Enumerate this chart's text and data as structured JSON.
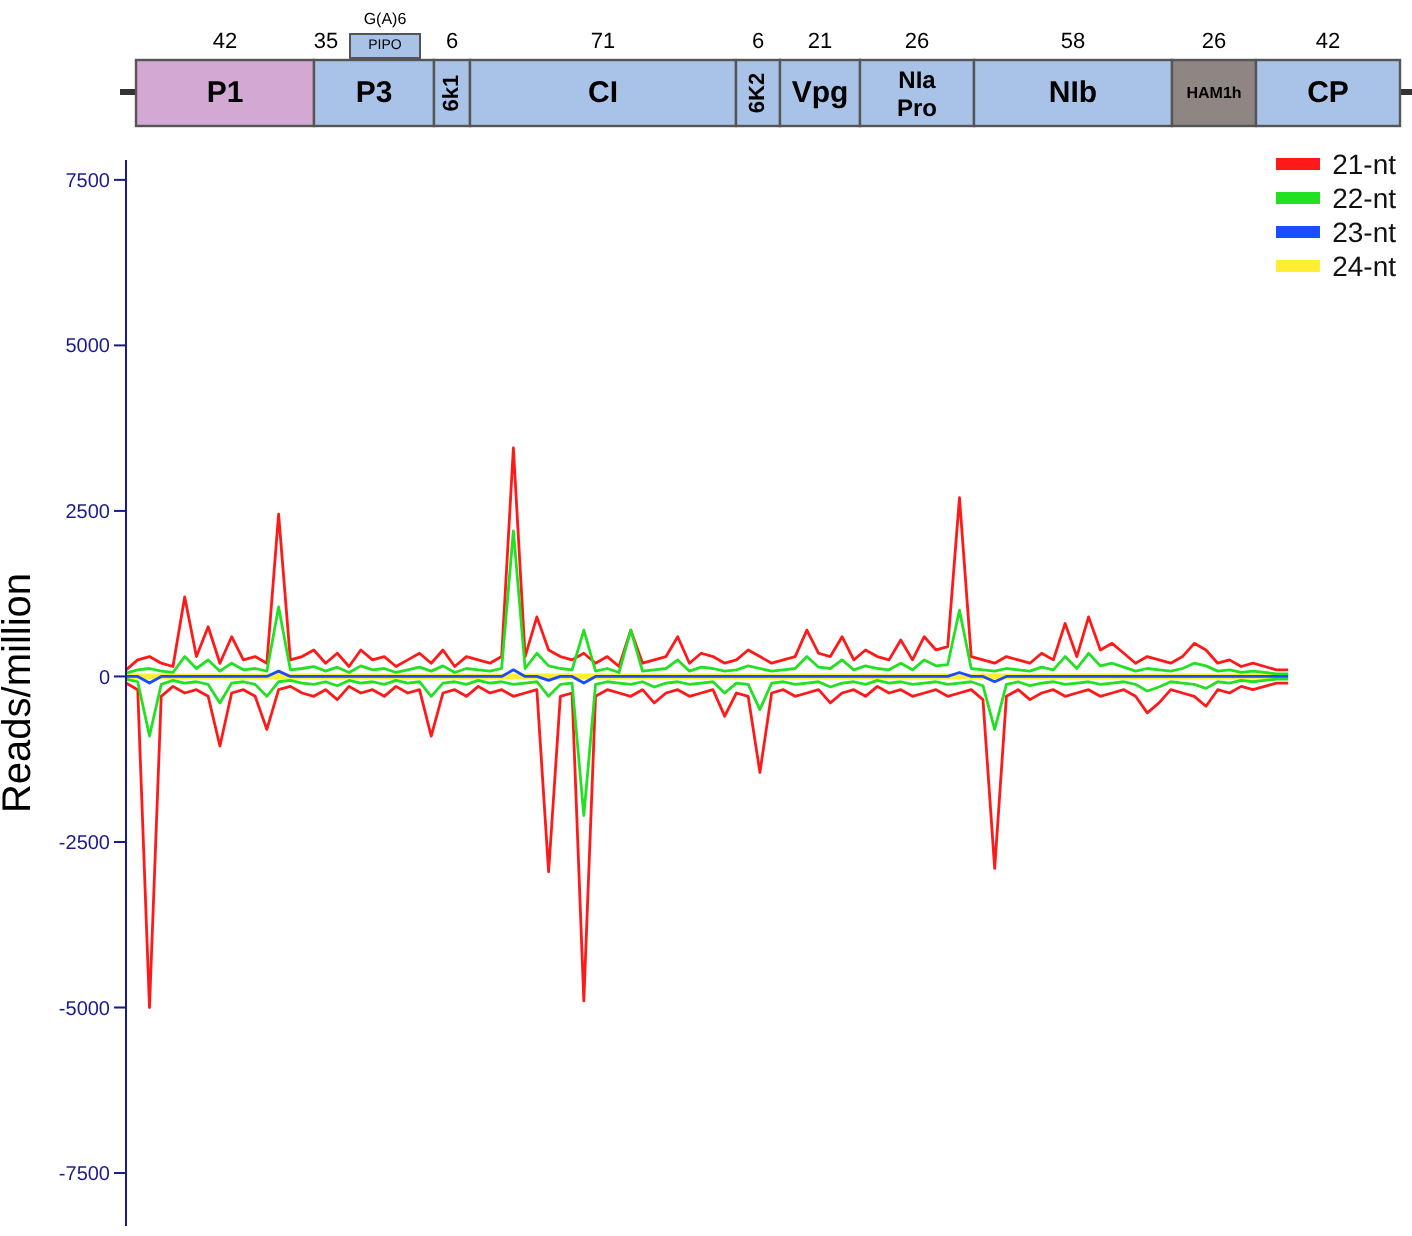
{
  "chart_data": {
    "type": "line",
    "ylabel": "Reads/million",
    "ylim": [
      -8300,
      7800
    ],
    "yticks": [
      -7500,
      -5000,
      -2500,
      0,
      2500,
      5000,
      7500
    ],
    "tick_labels": "y",
    "legend": "top right",
    "marker": "none",
    "categories": [
      null,
      null,
      null,
      null,
      null,
      null,
      null,
      null,
      null,
      null,
      null,
      null,
      null,
      null,
      null,
      null,
      null,
      null,
      null,
      null,
      null,
      null,
      null,
      null,
      null,
      null,
      null,
      null,
      null,
      null,
      null,
      null,
      null,
      null,
      null,
      null,
      null,
      null,
      null,
      null,
      null,
      null,
      null,
      null,
      null,
      null,
      null,
      null,
      null,
      null,
      null,
      null,
      null,
      null,
      null,
      null,
      null,
      null,
      null,
      null,
      null,
      null,
      null,
      null,
      null,
      null,
      null,
      null,
      null,
      null,
      null,
      null,
      null,
      null,
      null,
      null,
      null,
      null,
      null,
      null,
      null,
      null,
      null,
      null,
      null,
      null,
      null,
      null,
      null,
      null,
      null,
      null,
      null,
      null,
      null,
      null,
      null,
      null,
      null,
      null
    ],
    "annotations": [
      "42",
      "P1",
      "35",
      "P3",
      "G(A)6",
      "PIPO",
      "6",
      "6k1",
      "71",
      "CI",
      "6",
      "6K2",
      "21",
      "Vpg",
      "26",
      "NIa Pro",
      "58",
      "NIb",
      "26",
      "HAM1h",
      "42",
      "CP"
    ],
    "series": [
      {
        "name": "21-nt",
        "color": "#ff1a1a",
        "values": [
          100,
          250,
          300,
          200,
          150,
          1200,
          300,
          750,
          200,
          600,
          250,
          300,
          200,
          2450,
          250,
          300,
          400,
          200,
          350,
          150,
          400,
          250,
          300,
          150,
          250,
          350,
          200,
          400,
          150,
          300,
          250,
          200,
          300,
          3450,
          300,
          900,
          400,
          300,
          250,
          350,
          200,
          300,
          150,
          700,
          200,
          250,
          300,
          600,
          200,
          350,
          300,
          200,
          250,
          400,
          300,
          200,
          250,
          300,
          700,
          350,
          300,
          600,
          250,
          400,
          300,
          250,
          550,
          250,
          600,
          400,
          450,
          2700,
          300,
          250,
          200,
          300,
          250,
          200,
          350,
          250,
          800,
          300,
          900,
          400,
          500,
          350,
          200,
          300,
          250,
          200,
          300,
          500,
          400,
          200,
          250,
          150,
          200,
          150,
          100,
          100
        ]
      },
      {
        "color": "#ff1a1a",
        "values": [
          -100,
          -200,
          -5000,
          -300,
          -150,
          -250,
          -200,
          -300,
          -1050,
          -250,
          -200,
          -300,
          -800,
          -200,
          -150,
          -250,
          -300,
          -200,
          -350,
          -150,
          -250,
          -200,
          -300,
          -150,
          -250,
          -200,
          -900,
          -250,
          -200,
          -300,
          -150,
          -250,
          -200,
          -300,
          -250,
          -200,
          -2950,
          -300,
          -250,
          -4900,
          -300,
          -200,
          -250,
          -300,
          -200,
          -400,
          -250,
          -200,
          -300,
          -250,
          -200,
          -600,
          -250,
          -300,
          -1450,
          -250,
          -200,
          -300,
          -250,
          -200,
          -400,
          -250,
          -200,
          -300,
          -150,
          -250,
          -200,
          -300,
          -250,
          -200,
          -300,
          -250,
          -200,
          -350,
          -2900,
          -300,
          -200,
          -350,
          -250,
          -200,
          -300,
          -250,
          -200,
          -300,
          -250,
          -200,
          -300,
          -550,
          -400,
          -200,
          -250,
          -300,
          -450,
          -200,
          -250,
          -150,
          -200,
          -150,
          -100,
          -100
        ]
      },
      {
        "name": "22-nt",
        "color": "#22e022",
        "values": [
          50,
          100,
          120,
          80,
          60,
          300,
          120,
          250,
          80,
          200,
          100,
          120,
          80,
          1050,
          100,
          120,
          150,
          80,
          140,
          60,
          160,
          100,
          120,
          60,
          100,
          140,
          80,
          160,
          60,
          120,
          100,
          80,
          120,
          2200,
          120,
          350,
          160,
          120,
          100,
          700,
          80,
          120,
          60,
          700,
          80,
          100,
          120,
          250,
          80,
          140,
          120,
          80,
          100,
          160,
          120,
          80,
          100,
          120,
          300,
          140,
          120,
          250,
          100,
          160,
          120,
          100,
          200,
          100,
          250,
          160,
          180,
          1000,
          120,
          100,
          80,
          120,
          100,
          80,
          140,
          100,
          300,
          120,
          350,
          160,
          200,
          140,
          80,
          120,
          100,
          80,
          120,
          200,
          160,
          80,
          100,
          60,
          80,
          60,
          40,
          40
        ]
      },
      {
        "color": "#22e022",
        "values": [
          -40,
          -80,
          -900,
          -120,
          -60,
          -100,
          -80,
          -120,
          -400,
          -100,
          -80,
          -120,
          -300,
          -80,
          -60,
          -100,
          -120,
          -80,
          -140,
          -60,
          -100,
          -80,
          -120,
          -60,
          -100,
          -80,
          -300,
          -100,
          -80,
          -120,
          -60,
          -100,
          -80,
          -120,
          -100,
          -80,
          -300,
          -120,
          -100,
          -2100,
          -120,
          -80,
          -100,
          -120,
          -80,
          -160,
          -100,
          -80,
          -120,
          -100,
          -80,
          -250,
          -100,
          -120,
          -500,
          -100,
          -80,
          -120,
          -100,
          -80,
          -160,
          -100,
          -80,
          -120,
          -60,
          -100,
          -80,
          -120,
          -100,
          -80,
          -120,
          -100,
          -80,
          -140,
          -800,
          -120,
          -80,
          -140,
          -100,
          -80,
          -120,
          -100,
          -80,
          -120,
          -100,
          -80,
          -120,
          -220,
          -160,
          -80,
          -100,
          -120,
          -180,
          -80,
          -100,
          -60,
          -80,
          -60,
          -40,
          -40
        ]
      },
      {
        "name": "23-nt",
        "color": "#1a4dff",
        "values": [
          0,
          0,
          -100,
          0,
          0,
          0,
          0,
          0,
          0,
          0,
          0,
          0,
          0,
          80,
          0,
          0,
          0,
          0,
          0,
          0,
          0,
          0,
          0,
          0,
          0,
          0,
          0,
          0,
          0,
          0,
          0,
          0,
          0,
          100,
          0,
          0,
          -60,
          0,
          0,
          -100,
          0,
          0,
          0,
          0,
          0,
          0,
          0,
          0,
          0,
          0,
          0,
          0,
          0,
          0,
          0,
          0,
          0,
          0,
          0,
          0,
          0,
          0,
          0,
          0,
          0,
          0,
          0,
          0,
          0,
          0,
          0,
          60,
          0,
          0,
          -80,
          0,
          0,
          0,
          0,
          0,
          0,
          0,
          0,
          0,
          0,
          0,
          0,
          0,
          0,
          0,
          0,
          0,
          0,
          0,
          0,
          0,
          0,
          0,
          0,
          0
        ]
      },
      {
        "name": "24-nt",
        "color": "#ffee33",
        "values": [
          0,
          0,
          0,
          0,
          0,
          0,
          0,
          0,
          0,
          0,
          0,
          0,
          0,
          0,
          0,
          0,
          0,
          0,
          0,
          0,
          0,
          0,
          0,
          0,
          0,
          0,
          0,
          0,
          0,
          0,
          0,
          0,
          0,
          0,
          0,
          0,
          0,
          0,
          0,
          0,
          0,
          0,
          0,
          0,
          0,
          0,
          0,
          0,
          0,
          0,
          0,
          0,
          0,
          0,
          0,
          0,
          0,
          0,
          0,
          0,
          0,
          0,
          0,
          0,
          0,
          0,
          0,
          0,
          0,
          0,
          0,
          0,
          0,
          0,
          0,
          0,
          0,
          0,
          0,
          0,
          0,
          0,
          0,
          0,
          0,
          0,
          0,
          0,
          0,
          0,
          0,
          0,
          0,
          0,
          0,
          0,
          0,
          0,
          0,
          0
        ]
      }
    ]
  }
}
